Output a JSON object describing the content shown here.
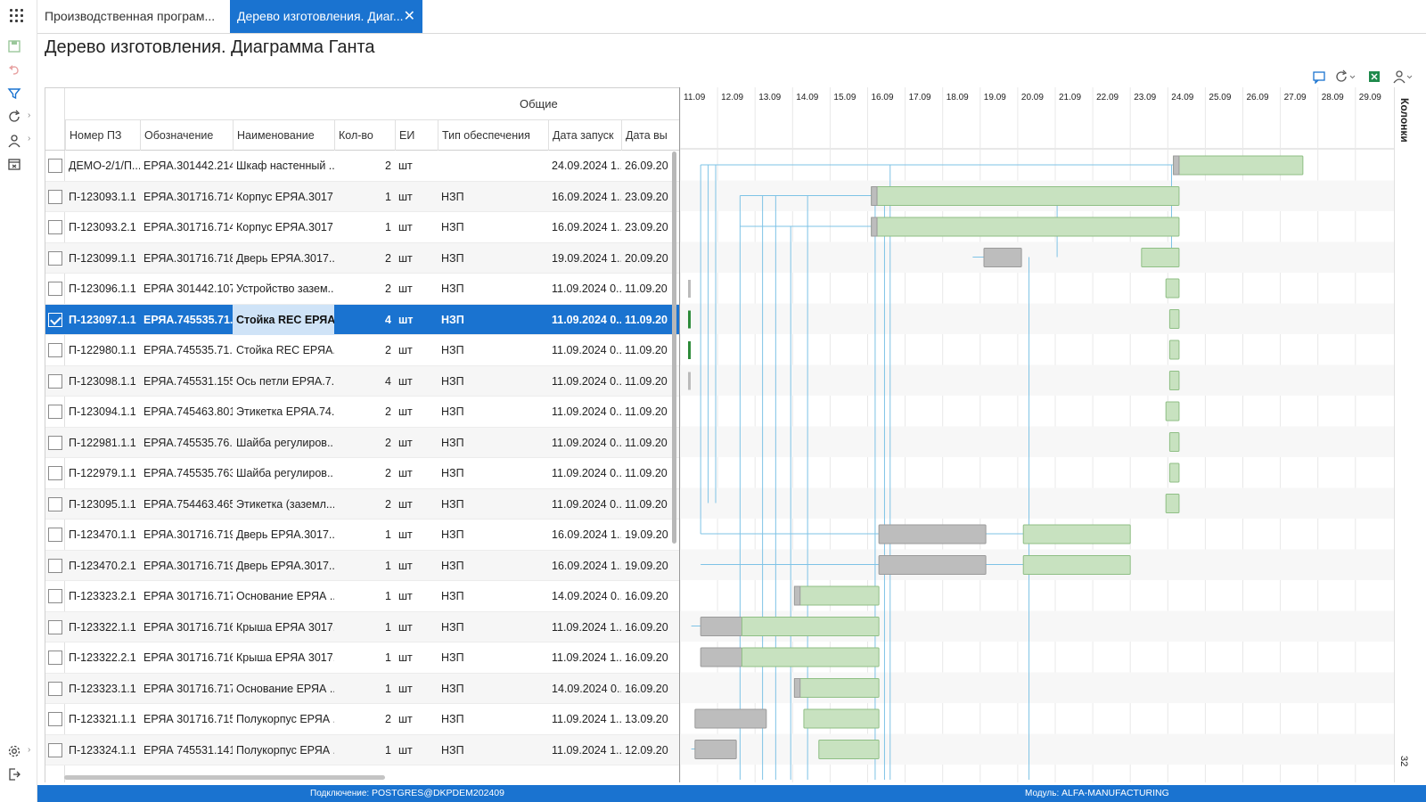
{
  "tabs": [
    {
      "label": "Производственная програм..."
    },
    {
      "label": "Дерево изготовления. Диаг..."
    }
  ],
  "page_title": "Дерево изготовления. Диаграмма Ганта",
  "grid": {
    "group_header": "Общие",
    "columns": [
      "Номер ПЗ",
      "Обозначение",
      "Наименование",
      "Кол-во",
      "ЕИ",
      "Тип обеспечения",
      "Дата запуск",
      "Дата вы"
    ],
    "rows": [
      {
        "num": "ДЕМО-2/1/П...",
        "code": "ЕРЯА.301442.214",
        "name": "Шкаф настенный ...",
        "qty": "2",
        "unit": "шт",
        "type": "",
        "start": "24.09.2024 1...",
        "end": "26.09.20"
      },
      {
        "num": "П-123093.1.1",
        "code": "ЕРЯА.301716.714",
        "name": "Корпус ЕРЯА.3017...",
        "qty": "1",
        "unit": "шт",
        "type": "НЗП",
        "start": "16.09.2024 1...",
        "end": "23.09.20"
      },
      {
        "num": "П-123093.2.1",
        "code": "ЕРЯА.301716.714",
        "name": "Корпус ЕРЯА.3017...",
        "qty": "1",
        "unit": "шт",
        "type": "НЗП",
        "start": "16.09.2024 1...",
        "end": "23.09.20"
      },
      {
        "num": "П-123099.1.1",
        "code": "ЕРЯА.301716.718",
        "name": "Дверь ЕРЯА.3017...",
        "qty": "2",
        "unit": "шт",
        "type": "НЗП",
        "start": "19.09.2024 1...",
        "end": "20.09.20"
      },
      {
        "num": "П-123096.1.1",
        "code": "ЕРЯА 301442.107",
        "name": "Устройство зазем...",
        "qty": "2",
        "unit": "шт",
        "type": "НЗП",
        "start": "11.09.2024 0...",
        "end": "11.09.20"
      },
      {
        "num": "П-123097.1.1",
        "code": "ЕРЯА.745535.71...",
        "name": "Стойка REC ЕРЯА....",
        "qty": "4",
        "unit": "шт",
        "type": "НЗП",
        "start": "11.09.2024 0...",
        "end": "11.09.20"
      },
      {
        "num": "П-122980.1.1",
        "code": "ЕРЯА.745535.71...",
        "name": "Стойка REC ЕРЯА....",
        "qty": "2",
        "unit": "шт",
        "type": "НЗП",
        "start": "11.09.2024 0...",
        "end": "11.09.20"
      },
      {
        "num": "П-123098.1.1",
        "code": "ЕРЯА.745531.155",
        "name": "Ось петли ЕРЯА.7...",
        "qty": "4",
        "unit": "шт",
        "type": "НЗП",
        "start": "11.09.2024 0...",
        "end": "11.09.20"
      },
      {
        "num": "П-123094.1.1",
        "code": "ЕРЯА.745463.801",
        "name": "Этикетка ЕРЯА.74...",
        "qty": "2",
        "unit": "шт",
        "type": "НЗП",
        "start": "11.09.2024 0...",
        "end": "11.09.20"
      },
      {
        "num": "П-122981.1.1",
        "code": "ЕРЯА.745535.76...",
        "name": "Шайба регулиров...",
        "qty": "2",
        "unit": "шт",
        "type": "НЗП",
        "start": "11.09.2024 0...",
        "end": "11.09.20"
      },
      {
        "num": "П-122979.1.1",
        "code": "ЕРЯА.745535.763",
        "name": "Шайба регулиров...",
        "qty": "2",
        "unit": "шт",
        "type": "НЗП",
        "start": "11.09.2024 0...",
        "end": "11.09.20"
      },
      {
        "num": "П-123095.1.1",
        "code": "ЕРЯА.754463.465",
        "name": "Этикетка (заземл...",
        "qty": "2",
        "unit": "шт",
        "type": "НЗП",
        "start": "11.09.2024 0...",
        "end": "11.09.20"
      },
      {
        "num": "П-123470.1.1",
        "code": "ЕРЯА.301716.719",
        "name": "Дверь ЕРЯА.3017...",
        "qty": "1",
        "unit": "шт",
        "type": "НЗП",
        "start": "16.09.2024 1...",
        "end": "19.09.20"
      },
      {
        "num": "П-123470.2.1",
        "code": "ЕРЯА.301716.719",
        "name": "Дверь ЕРЯА.3017...",
        "qty": "1",
        "unit": "шт",
        "type": "НЗП",
        "start": "16.09.2024 1...",
        "end": "19.09.20"
      },
      {
        "num": "П-123323.2.1",
        "code": "ЕРЯА 301716.717",
        "name": "Основание ЕРЯА ...",
        "qty": "1",
        "unit": "шт",
        "type": "НЗП",
        "start": "14.09.2024 0...",
        "end": "16.09.20"
      },
      {
        "num": "П-123322.1.1",
        "code": "ЕРЯА 301716.716",
        "name": "Крыша ЕРЯА 3017...",
        "qty": "1",
        "unit": "шт",
        "type": "НЗП",
        "start": "11.09.2024 1...",
        "end": "16.09.20"
      },
      {
        "num": "П-123322.2.1",
        "code": "ЕРЯА 301716.716",
        "name": "Крыша ЕРЯА 3017...",
        "qty": "1",
        "unit": "шт",
        "type": "НЗП",
        "start": "11.09.2024 1...",
        "end": "16.09.20"
      },
      {
        "num": "П-123323.1.1",
        "code": "ЕРЯА 301716.717",
        "name": "Основание ЕРЯА ...",
        "qty": "1",
        "unit": "шт",
        "type": "НЗП",
        "start": "14.09.2024 0...",
        "end": "16.09.20"
      },
      {
        "num": "П-123321.1.1",
        "code": "ЕРЯА 301716.715",
        "name": "Полукорпус ЕРЯА ...",
        "qty": "2",
        "unit": "шт",
        "type": "НЗП",
        "start": "11.09.2024 1...",
        "end": "13.09.20"
      },
      {
        "num": "П-123324.1.1",
        "code": "ЕРЯА 745531.141",
        "name": "Полукорпус ЕРЯА ...",
        "qty": "1",
        "unit": "шт",
        "type": "НЗП",
        "start": "11.09.2024 1...",
        "end": "12.09.20"
      }
    ],
    "selected_row": 5
  },
  "gantt": {
    "dates": [
      "11.09",
      "12.09",
      "13.09",
      "14.09",
      "15.09",
      "16.09",
      "17.09",
      "18.09",
      "19.09",
      "20.09",
      "21.09",
      "22.09",
      "23.09",
      "24.09",
      "25.09",
      "26.09",
      "27.09",
      "28.09",
      "29.09"
    ],
    "colors": {
      "plan": "#c8e2c0",
      "fact": "#bdbdbd",
      "link": "#7ec3e6",
      "line": "#a8cfa0"
    }
  },
  "side_panel": {
    "label": "Колонки",
    "count": "32"
  },
  "status": {
    "connection_label": "Подключение:",
    "connection_value": "POSTGRES@DKPDEM202409",
    "module_label": "Модуль:",
    "module_value": "ALFA-MANUFACTURING"
  },
  "icons": [
    "apps-grid-icon",
    "save-icon",
    "undo-icon",
    "filter-icon",
    "refresh-icon",
    "user-icon",
    "export-icon",
    "settings-icon",
    "logout-icon",
    "comment-icon",
    "excel-icon",
    "user-settings-icon"
  ]
}
